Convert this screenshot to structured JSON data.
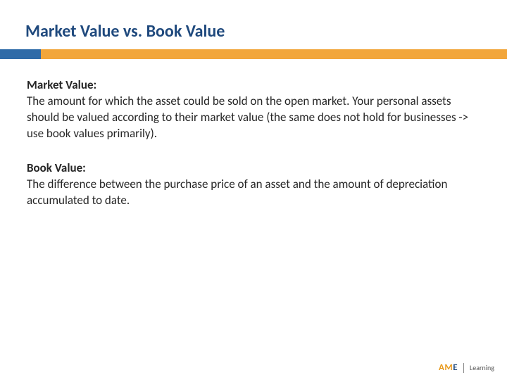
{
  "title": "Market Value vs. Book Value",
  "bar": {
    "blue_width_pct": 8,
    "orange_width_pct": 92,
    "blue_color": "#2f6ba8",
    "orange_color": "#f2a63b"
  },
  "section1": {
    "heading": "Market Value:",
    "body": "The amount for which the asset could be sold on the open market. Your personal assets should be valued according to their market value (the same does not hold for businesses -> use book values primarily)."
  },
  "section2": {
    "heading": "Book Value:",
    "body": "The difference between the purchase price of an asset and the amount of depreciation accumulated to date."
  },
  "logo": {
    "prefix": "AM",
    "suffix": "E",
    "sub": "Learning"
  },
  "colors": {
    "title": "#1f497d",
    "text": "#262626",
    "background": "#ffffff"
  },
  "fontsizes": {
    "title": 24,
    "body": 17
  }
}
